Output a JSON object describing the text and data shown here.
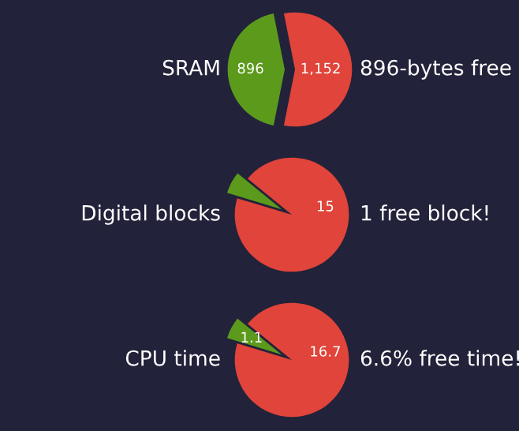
{
  "chart_data": [
    {
      "type": "pie",
      "title": "SRAM",
      "annotations": [
        "896-bytes free"
      ],
      "categories": [
        null,
        null
      ],
      "values": [
        896,
        1152
      ],
      "colors": [
        "#5c9a1c",
        "#e0443a"
      ],
      "value_labels": [
        "896",
        "1,152"
      ]
    },
    {
      "type": "pie",
      "title": "Digital blocks",
      "annotations": [
        "1 free block!"
      ],
      "categories": [
        null,
        null
      ],
      "values": [
        1,
        15
      ],
      "colors": [
        "#5c9a1c",
        "#e0443a"
      ],
      "value_labels": [
        null,
        "15"
      ]
    },
    {
      "type": "pie",
      "title": "CPU time",
      "annotations": [
        "6.6% free time!"
      ],
      "categories": [
        null,
        null
      ],
      "values": [
        1.1,
        16.7
      ],
      "colors": [
        "#5c9a1c",
        "#e0443a"
      ],
      "value_labels": [
        "1.1",
        "16.7"
      ]
    }
  ]
}
